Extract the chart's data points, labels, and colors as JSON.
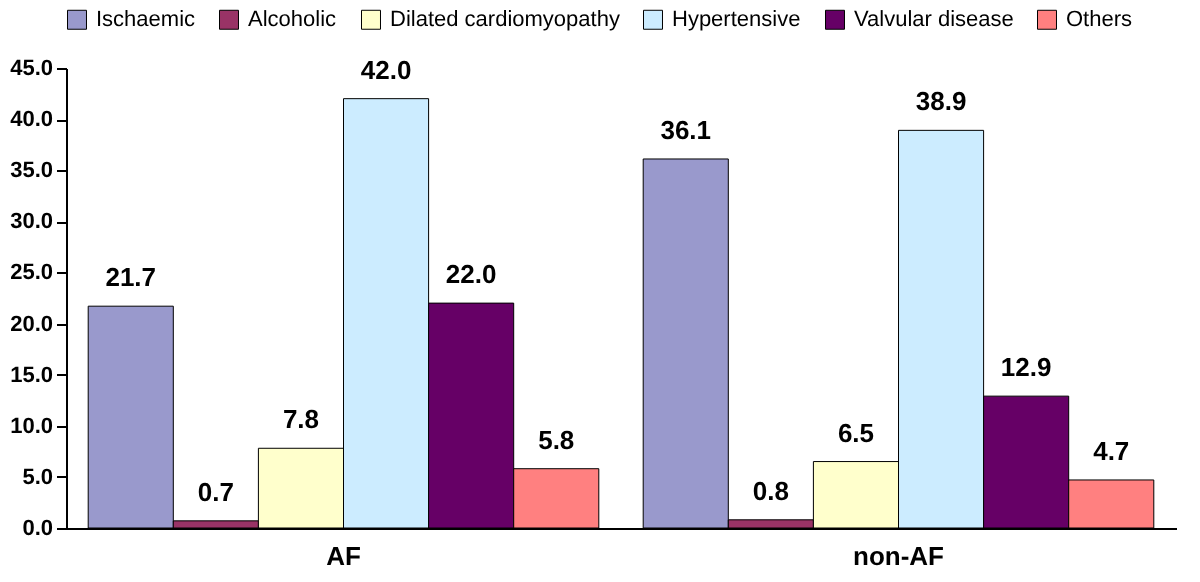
{
  "chart_data": {
    "type": "bar",
    "categories": [
      "AF",
      "non-AF"
    ],
    "series": [
      {
        "name": "Ischaemic",
        "color": "#9999cc",
        "values": [
          21.7,
          36.1
        ],
        "value_labels": [
          "21.7",
          "36.1"
        ]
      },
      {
        "name": "Alcoholic",
        "color": "#993366",
        "values": [
          0.7,
          0.8
        ],
        "value_labels": [
          "0.7",
          "0.8"
        ]
      },
      {
        "name": "Dilated cardiomyopathy",
        "color": "#ffffcc",
        "values": [
          7.8,
          6.5
        ],
        "value_labels": [
          "7.8",
          "6.5"
        ]
      },
      {
        "name": "Hypertensive",
        "color": "#ccecff",
        "values": [
          42.0,
          38.9
        ],
        "value_labels": [
          "42.0",
          "38.9"
        ]
      },
      {
        "name": "Valvular disease",
        "color": "#660066",
        "values": [
          22.0,
          12.9
        ],
        "value_labels": [
          "22.0",
          "12.9"
        ]
      },
      {
        "name": "Others",
        "color": "#ff8080",
        "values": [
          5.8,
          4.7
        ],
        "value_labels": [
          "5.8",
          "4.7"
        ]
      }
    ],
    "ylim": [
      0,
      45
    ],
    "yticks": [
      {
        "value": 0,
        "label": "0.0"
      },
      {
        "value": 5,
        "label": "5.0"
      },
      {
        "value": 10,
        "label": "10.0"
      },
      {
        "value": 15,
        "label": "15.0"
      },
      {
        "value": 20,
        "label": "20.0"
      },
      {
        "value": 25,
        "label": "25.0"
      },
      {
        "value": 30,
        "label": "30.0"
      },
      {
        "value": 35,
        "label": "35.0"
      },
      {
        "value": 40,
        "label": "40.0"
      },
      {
        "value": 45,
        "label": "45.0"
      }
    ],
    "legend": "top",
    "grid": false
  }
}
